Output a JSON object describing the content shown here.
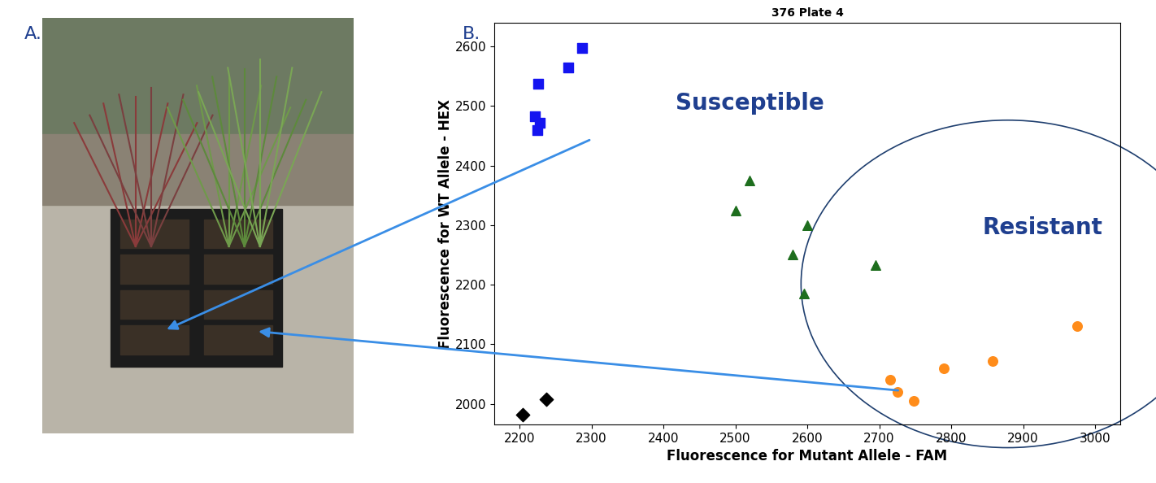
{
  "panel_labels": [
    "A.",
    "B."
  ],
  "chart_data": {
    "type": "scatter",
    "title": "376 Plate 4",
    "x_label": "Fluorescence for Mutant Allele - FAM",
    "y_label": "Fluorescence for WT Allele - HEX",
    "xlim": [
      2165,
      3035
    ],
    "ylim": [
      1965,
      2640
    ],
    "xticks": [
      2200,
      2300,
      2400,
      2500,
      2600,
      2700,
      2800,
      2900,
      3000
    ],
    "yticks": [
      2000,
      2100,
      2200,
      2300,
      2400,
      2500,
      2600
    ],
    "grid": false,
    "annotations": [
      "Susceptible",
      "Resistant"
    ],
    "series": [
      {
        "color": "#1414f0",
        "marker": "square",
        "x": [
          2225,
          2228,
          2222,
          2226,
          2268,
          2287
        ],
        "values": [
          2460,
          2472,
          2483,
          2537,
          2565,
          2597
        ]
      },
      {
        "color": "#1e6e1e",
        "marker": "triangle",
        "x": [
          2500,
          2520,
          2600,
          2580,
          2595,
          2695
        ],
        "values": [
          2325,
          2375,
          2300,
          2250,
          2185,
          2233
        ]
      },
      {
        "color": "#ff8c1a",
        "marker": "circle",
        "x": [
          2715,
          2725,
          2748,
          2790,
          2858,
          2975
        ],
        "values": [
          2040,
          2020,
          2005,
          2060,
          2072,
          2130
        ]
      },
      {
        "color": "#000000",
        "marker": "diamond",
        "x": [
          2205,
          2237
        ],
        "values": [
          1982,
          2008
        ]
      }
    ]
  }
}
